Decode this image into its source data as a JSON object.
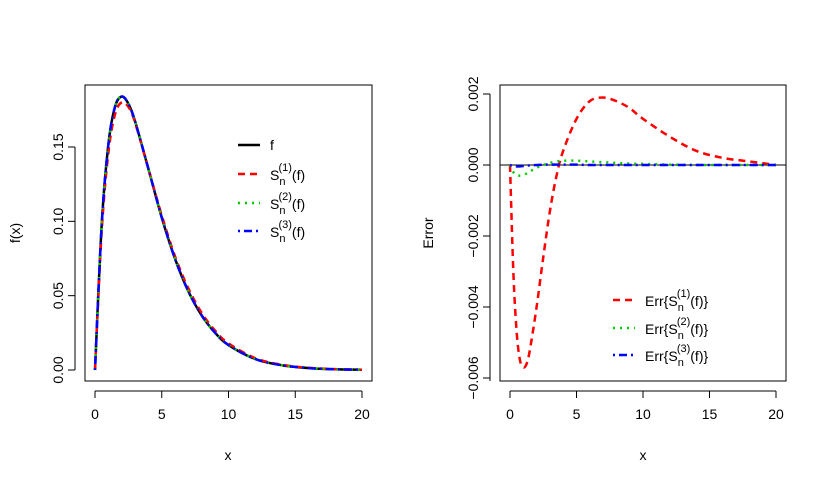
{
  "chart_data": [
    {
      "type": "line",
      "title": "",
      "xlabel": "x",
      "ylabel": "f(x)",
      "xlim": [
        0,
        20
      ],
      "ylim": [
        0,
        0.184
      ],
      "xticks": [
        "0",
        "5",
        "10",
        "15",
        "20"
      ],
      "yticks": [
        "0.00",
        "0.05",
        "0.10",
        "0.15"
      ],
      "grid": false,
      "legend_position": "topright-inside",
      "x": [
        0,
        0.5,
        1,
        1.5,
        2,
        2.5,
        3,
        4,
        5,
        6,
        7,
        8,
        9,
        10,
        12,
        14,
        16,
        18,
        20
      ],
      "series": [
        {
          "name": "f",
          "color": "#000000",
          "style": "solid",
          "values": [
            0,
            0.0974,
            0.1516,
            0.1771,
            0.1839,
            0.1791,
            0.1673,
            0.1353,
            0.1026,
            0.0747,
            0.0528,
            0.0366,
            0.025,
            0.0168,
            0.0074,
            0.0032,
            0.0013,
            0.0005,
            0.0002
          ]
        },
        {
          "name": "S_n^(1)(f)",
          "color": "#ff0000",
          "style": "dashed",
          "values": [
            0,
            0.093,
            0.146,
            0.172,
            0.18,
            0.177,
            0.1665,
            0.1353,
            0.104,
            0.0763,
            0.0547,
            0.0383,
            0.0264,
            0.0179,
            0.008,
            0.0035,
            0.0015,
            0.0006,
            0.0002
          ]
        },
        {
          "name": "S_n^(2)(f)",
          "color": "#00cd00",
          "style": "dotted",
          "values": [
            0,
            0.0971,
            0.1514,
            0.1771,
            0.184,
            0.1792,
            0.1674,
            0.1354,
            0.1027,
            0.0748,
            0.0528,
            0.0366,
            0.025,
            0.0168,
            0.0074,
            0.0032,
            0.0013,
            0.0005,
            0.0002
          ]
        },
        {
          "name": "S_n^(3)(f)",
          "color": "#0000ff",
          "style": "dotdash",
          "values": [
            0,
            0.0974,
            0.1516,
            0.1771,
            0.1839,
            0.1791,
            0.1673,
            0.1353,
            0.1026,
            0.0747,
            0.0528,
            0.0366,
            0.025,
            0.0168,
            0.0074,
            0.0032,
            0.0013,
            0.0005,
            0.0002
          ]
        }
      ]
    },
    {
      "type": "line",
      "title": "",
      "xlabel": "x",
      "ylabel": "Error",
      "xlim": [
        0,
        20
      ],
      "ylim": [
        -0.006,
        0.002
      ],
      "xticks": [
        "0",
        "5",
        "10",
        "15",
        "20"
      ],
      "yticks": [
        "-0.006",
        "-0.004",
        "-0.002",
        "0.000",
        "0.002"
      ],
      "grid": false,
      "reference_line": {
        "y": 0,
        "color": "#000000"
      },
      "legend_position": "bottomright-inside",
      "x": [
        0,
        0.25,
        0.5,
        0.75,
        1,
        1.25,
        1.5,
        2,
        2.5,
        3,
        3.5,
        4,
        5,
        6,
        7,
        8,
        9,
        10,
        12,
        14,
        16,
        18,
        20
      ],
      "series": [
        {
          "name": "Err{S_n^(1)(f)}",
          "color": "#ff0000",
          "style": "dashed",
          "values": [
            0,
            -0.003,
            -0.0047,
            -0.0055,
            -0.0057,
            -0.0056,
            -0.0052,
            -0.004,
            -0.0026,
            -0.0013,
            -0.0003,
            0.0004,
            0.0013,
            0.0018,
            0.0019,
            0.0018,
            0.0016,
            0.0013,
            0.0008,
            0.0004,
            0.0002,
            0.0001,
            0.0
          ]
        },
        {
          "name": "Err{S_n^(2)(f)}",
          "color": "#00cd00",
          "style": "dotted",
          "values": [
            0,
            -0.0002,
            -0.00028,
            -0.0003,
            -0.00028,
            -0.00024,
            -0.00018,
            -8e-05,
            0.0,
            6e-05,
            0.0001,
            0.00012,
            0.00012,
            0.0001,
            8e-05,
            6e-05,
            4e-05,
            3e-05,
            1e-05,
            0.0,
            0.0,
            0.0,
            0.0
          ]
        },
        {
          "name": "Err{S_n^(3)(f)}",
          "color": "#0000ff",
          "style": "dotdash",
          "values": [
            0,
            -3e-05,
            -4e-05,
            -4e-05,
            -3e-05,
            -2e-05,
            -1e-05,
            0.0,
            1e-05,
            1e-05,
            1e-05,
            1e-05,
            1e-05,
            0.0,
            0.0,
            0.0,
            0.0,
            0.0,
            0.0,
            0.0,
            0.0,
            0.0,
            0.0
          ]
        }
      ]
    }
  ],
  "left_plot": {
    "ylabel": "f(x)",
    "xlabel": "x",
    "xticks": [
      "0",
      "5",
      "10",
      "15",
      "20"
    ],
    "yticks": [
      "0.00",
      "0.05",
      "0.10",
      "0.15"
    ],
    "legend": [
      {
        "base": "f",
        "sup": "",
        "sub": "",
        "tail": ""
      },
      {
        "base": "S",
        "sub": "n",
        "sup": "(1)",
        "tail": "(f)"
      },
      {
        "base": "S",
        "sub": "n",
        "sup": "(2)",
        "tail": "(f)"
      },
      {
        "base": "S",
        "sub": "n",
        "sup": "(3)",
        "tail": "(f)"
      }
    ]
  },
  "right_plot": {
    "ylabel": "Error",
    "xlabel": "x",
    "xticks": [
      "0",
      "5",
      "10",
      "15",
      "20"
    ],
    "yticks": [
      "-0.006",
      "-0.004",
      "-0.002",
      "0.000",
      "0.002"
    ],
    "legend": [
      {
        "pre": "Err{S",
        "sub": "n",
        "sup": "(1)",
        "tail": "(f)}"
      },
      {
        "pre": "Err{S",
        "sub": "n",
        "sup": "(2)",
        "tail": "(f)}"
      },
      {
        "pre": "Err{S",
        "sub": "n",
        "sup": "(3)",
        "tail": "(f)}"
      }
    ]
  },
  "colors": {
    "f": "#000000",
    "s1": "#ff0000",
    "s2": "#00cd00",
    "s3": "#0000ff"
  }
}
